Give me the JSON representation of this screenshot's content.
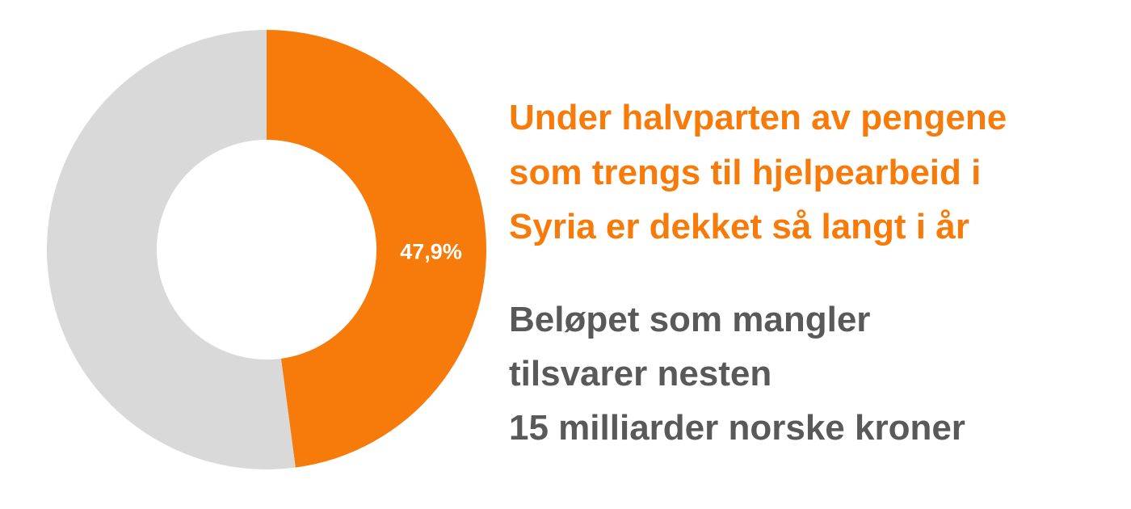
{
  "chart_data": {
    "type": "donut",
    "values": [
      47.9,
      52.1
    ],
    "value_labels": [
      "47,9%",
      null
    ],
    "colors": [
      "#f77b0a",
      "#d9d9d9"
    ],
    "title": [
      "Under halvparten av pengene",
      "som trengs til hjelpearbeid i",
      "Syria er dekket så langt i år"
    ],
    "subtitle": [
      "Beløpet som mangler",
      "tilsvarer nesten",
      "15 milliarder norske kroner"
    ]
  }
}
